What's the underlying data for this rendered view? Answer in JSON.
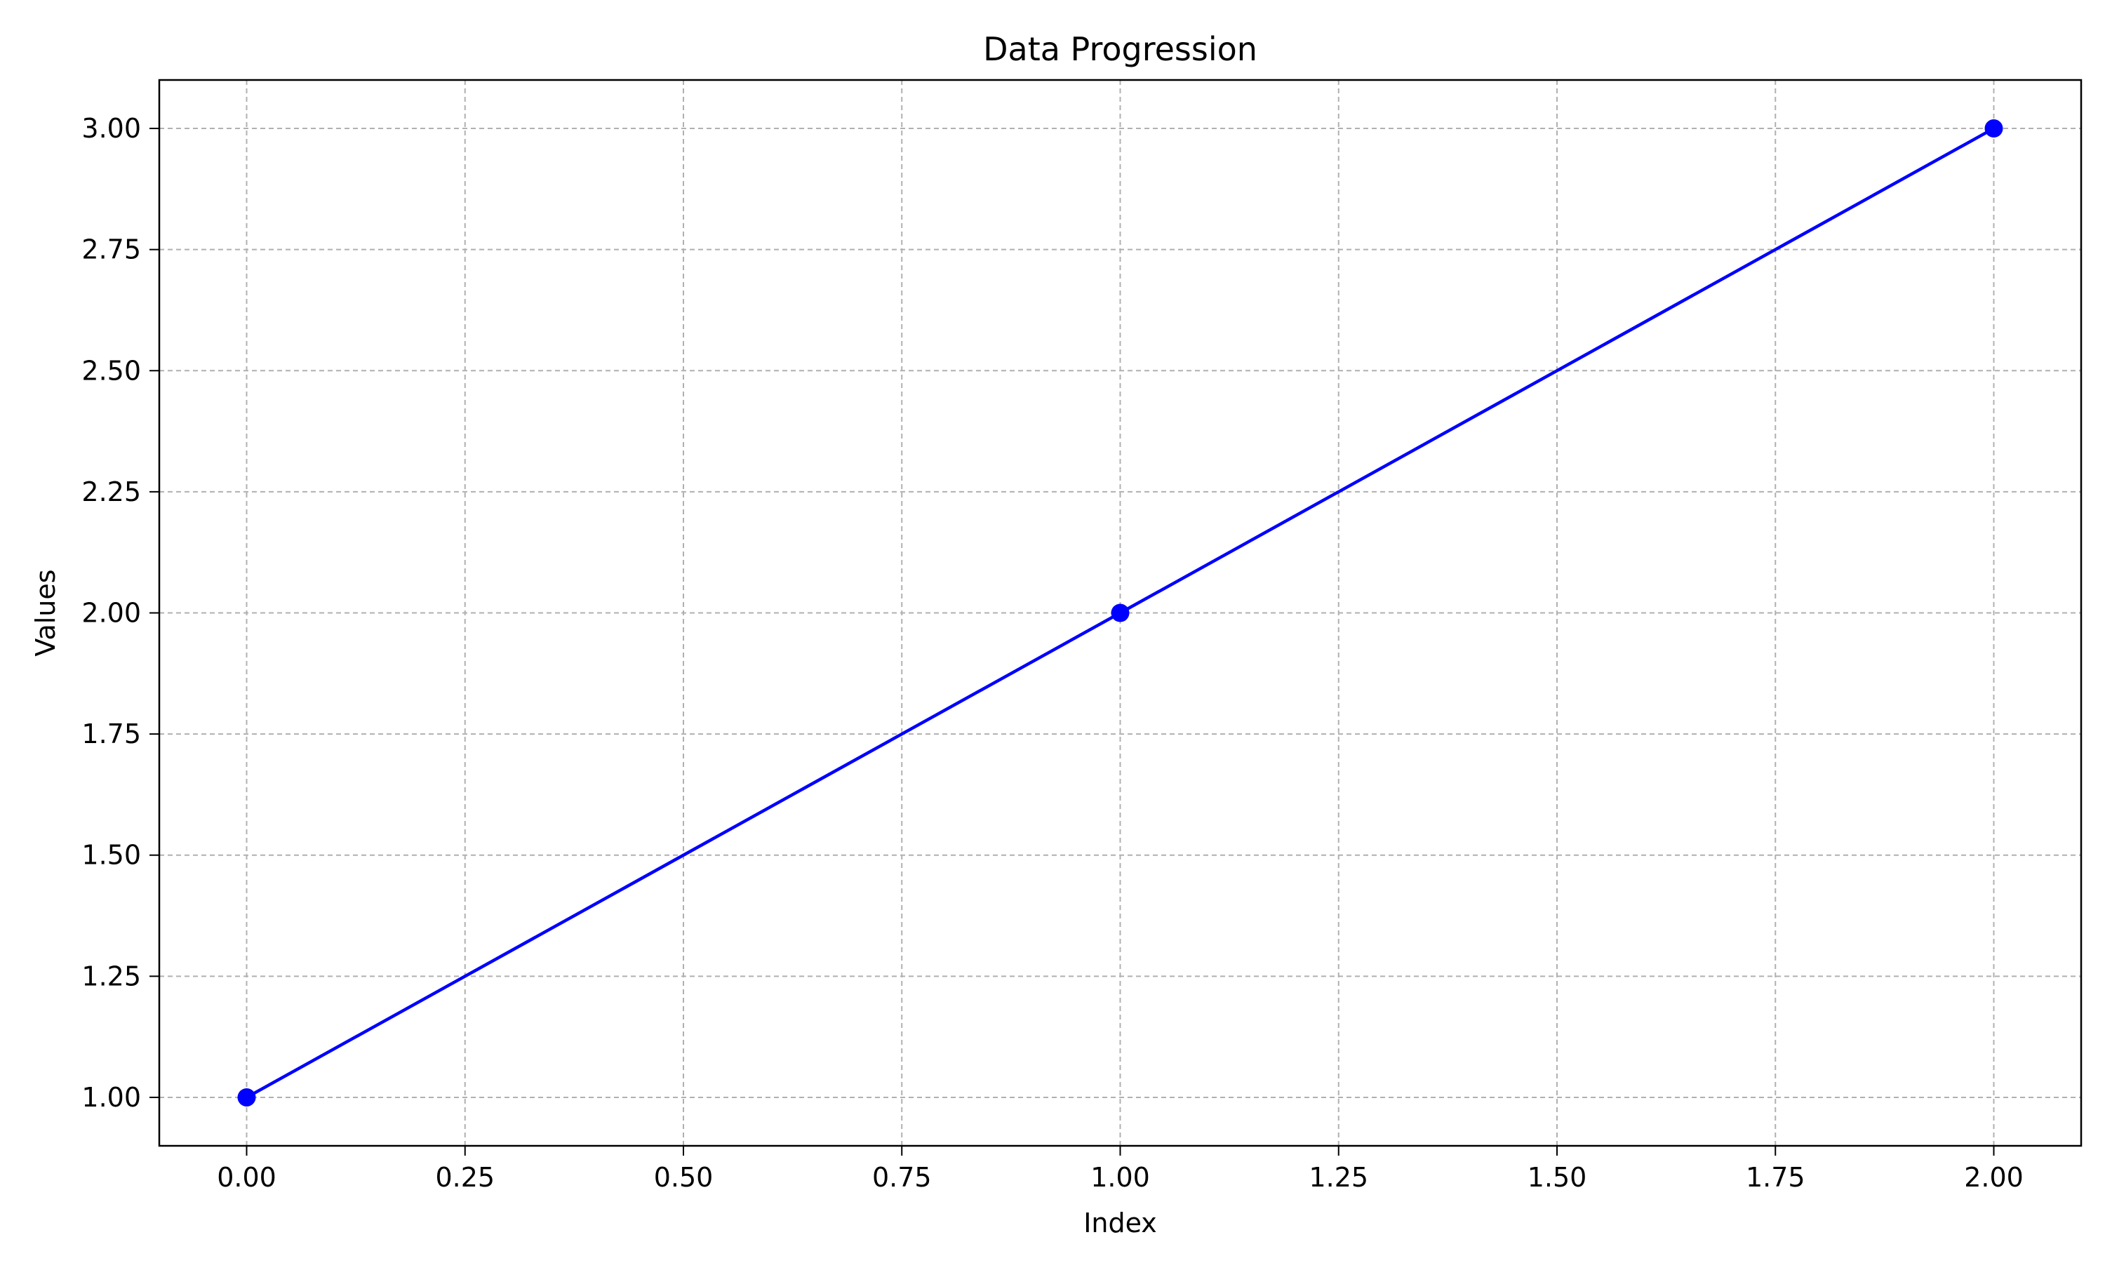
{
  "chart_data": {
    "type": "line",
    "title": "Data Progression",
    "xlabel": "Index",
    "ylabel": "Values",
    "x": [
      0,
      1,
      2
    ],
    "series": [
      {
        "values": [
          1,
          2,
          3
        ],
        "color": "#0000ff",
        "marker": "circle"
      }
    ],
    "xlim": [
      -0.1,
      2.1
    ],
    "ylim": [
      0.9,
      3.1
    ],
    "xticks": [
      0,
      0.25,
      0.5,
      0.75,
      1,
      1.25,
      1.5,
      1.75,
      2
    ],
    "xtick_labels": [
      "0.00",
      "0.25",
      "0.50",
      "0.75",
      "1.00",
      "1.25",
      "1.50",
      "1.75",
      "2.00"
    ],
    "yticks": [
      1,
      1.25,
      1.5,
      1.75,
      2,
      2.25,
      2.5,
      2.75,
      3
    ],
    "ytick_labels": [
      "1.00",
      "1.25",
      "1.50",
      "1.75",
      "2.00",
      "2.25",
      "2.50",
      "2.75",
      "3.00"
    ],
    "grid": true,
    "grid_style": "dashed",
    "legend": "none"
  }
}
